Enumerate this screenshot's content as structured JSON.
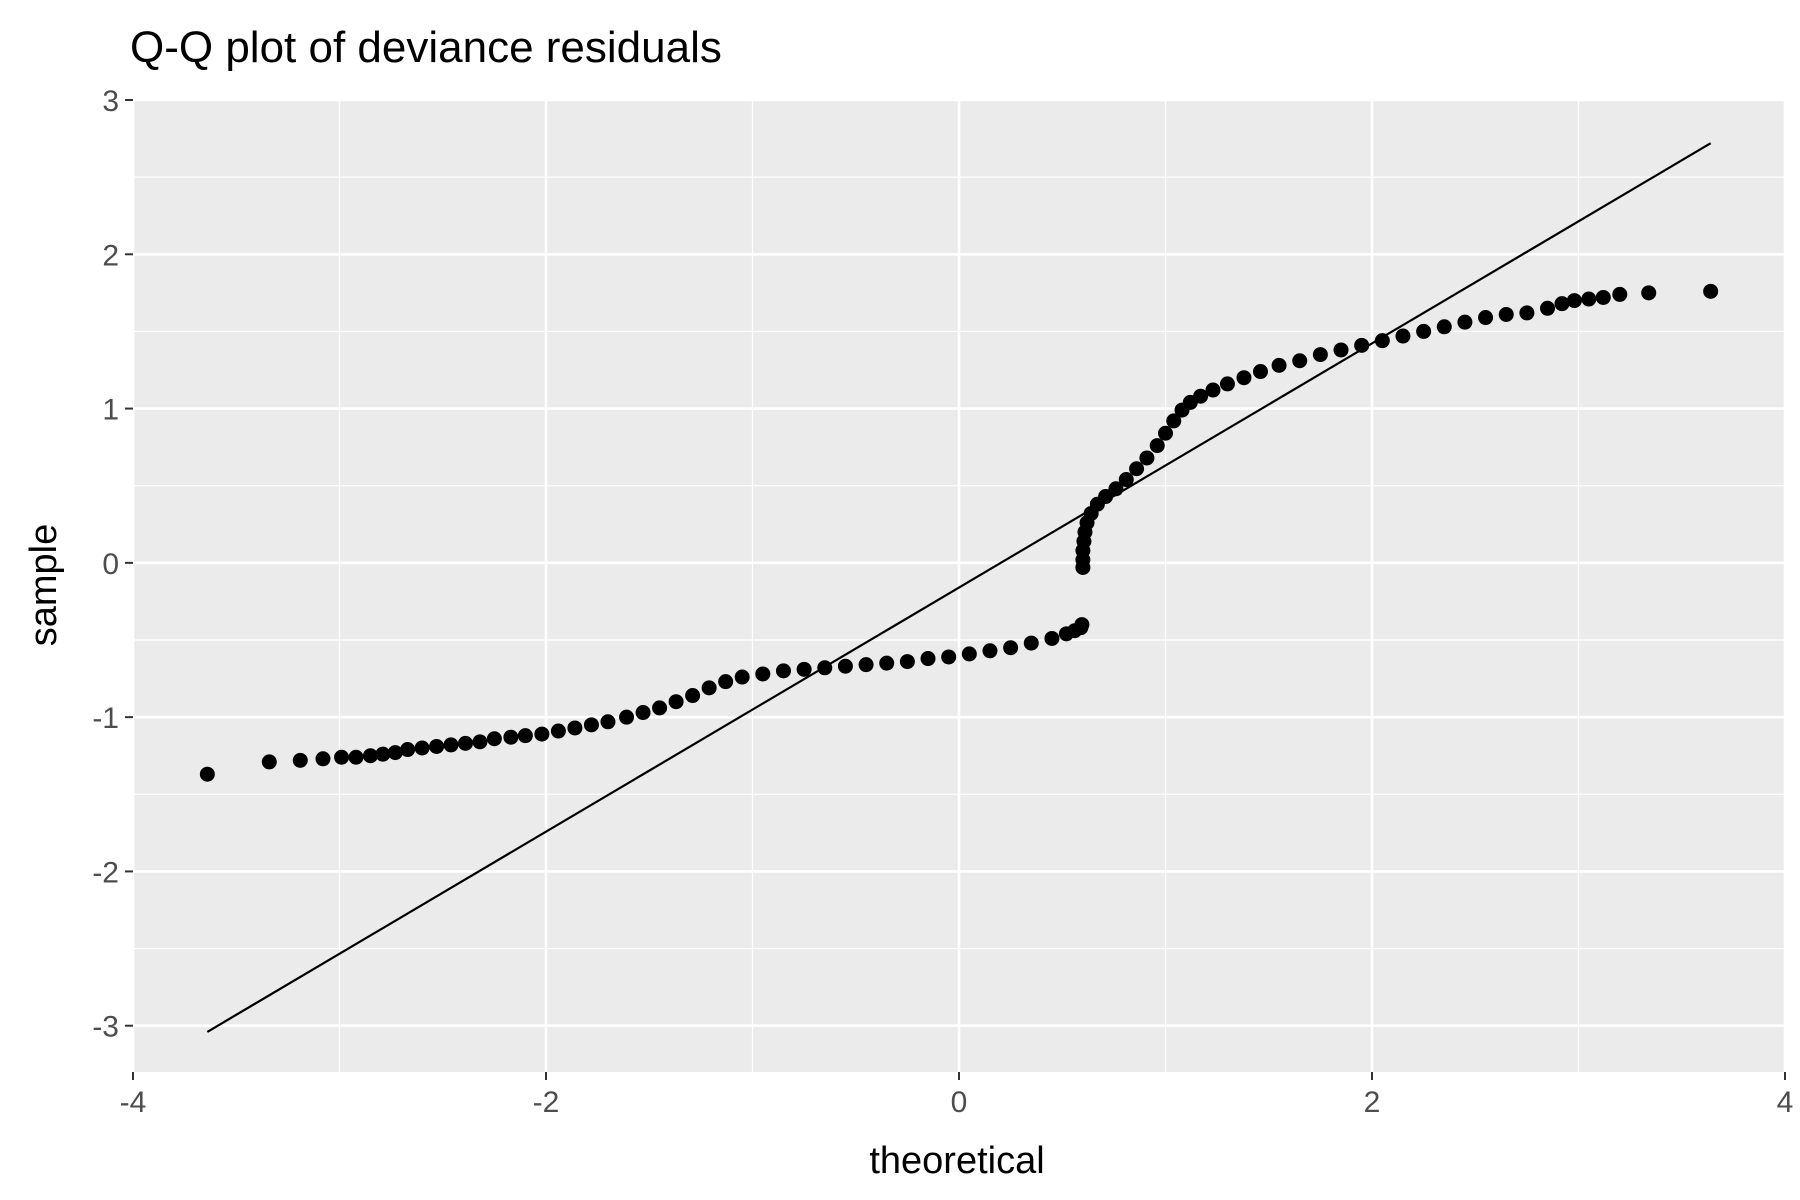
{
  "chart_data": {
    "type": "scatter",
    "title": "Q-Q plot of deviance residuals",
    "xlabel": "theoretical",
    "ylabel": "sample",
    "xlim": [
      -4,
      4
    ],
    "ylim": [
      -3.3,
      3
    ],
    "x_ticks": [
      -4,
      -2,
      0,
      2,
      4
    ],
    "y_ticks": [
      -3,
      -2,
      -1,
      0,
      1,
      2,
      3
    ],
    "x_tick_labels": [
      "-4",
      "-2",
      "0",
      "2",
      "4"
    ],
    "y_tick_labels": [
      "-3",
      "-2",
      "-1",
      "0",
      "1",
      "2",
      "3"
    ],
    "grid": true,
    "background": "#ebebeb",
    "grid_color": "#ffffff",
    "point_color": "#000000",
    "reference_line": {
      "x": [
        -3.64,
        3.64
      ],
      "y": [
        -3.04,
        2.72
      ]
    },
    "series": [
      {
        "points": [
          [
            -3.64,
            -1.37
          ],
          [
            -3.34,
            -1.29
          ],
          [
            -3.19,
            -1.28
          ],
          [
            -3.08,
            -1.27
          ],
          [
            -2.99,
            -1.26
          ],
          [
            -2.92,
            -1.26
          ],
          [
            -2.85,
            -1.25
          ],
          [
            -2.79,
            -1.24
          ],
          [
            -2.73,
            -1.23
          ],
          [
            -2.67,
            -1.21
          ],
          [
            -2.6,
            -1.2
          ],
          [
            -2.53,
            -1.19
          ],
          [
            -2.46,
            -1.18
          ],
          [
            -2.39,
            -1.17
          ],
          [
            -2.32,
            -1.16
          ],
          [
            -2.25,
            -1.14
          ],
          [
            -2.17,
            -1.13
          ],
          [
            -2.1,
            -1.12
          ],
          [
            -2.02,
            -1.11
          ],
          [
            -1.94,
            -1.09
          ],
          [
            -1.86,
            -1.07
          ],
          [
            -1.78,
            -1.05
          ],
          [
            -1.7,
            -1.03
          ],
          [
            -1.61,
            -1.0
          ],
          [
            -1.53,
            -0.97
          ],
          [
            -1.45,
            -0.94
          ],
          [
            -1.37,
            -0.9
          ],
          [
            -1.29,
            -0.86
          ],
          [
            -1.21,
            -0.81
          ],
          [
            -1.13,
            -0.77
          ],
          [
            -1.05,
            -0.74
          ],
          [
            -0.95,
            -0.72
          ],
          [
            -0.85,
            -0.7
          ],
          [
            -0.75,
            -0.69
          ],
          [
            -0.65,
            -0.68
          ],
          [
            -0.55,
            -0.67
          ],
          [
            -0.45,
            -0.66
          ],
          [
            -0.35,
            -0.65
          ],
          [
            -0.25,
            -0.64
          ],
          [
            -0.15,
            -0.62
          ],
          [
            -0.05,
            -0.61
          ],
          [
            0.05,
            -0.59
          ],
          [
            0.15,
            -0.57
          ],
          [
            0.25,
            -0.55
          ],
          [
            0.35,
            -0.52
          ],
          [
            0.45,
            -0.49
          ],
          [
            0.52,
            -0.46
          ],
          [
            0.56,
            -0.44
          ],
          [
            0.59,
            -0.42
          ],
          [
            0.595,
            -0.4
          ],
          [
            0.6,
            -0.03
          ],
          [
            0.6,
            0.02
          ],
          [
            0.6,
            0.08
          ],
          [
            0.605,
            0.14
          ],
          [
            0.61,
            0.2
          ],
          [
            0.62,
            0.26
          ],
          [
            0.64,
            0.32
          ],
          [
            0.67,
            0.38
          ],
          [
            0.71,
            0.43
          ],
          [
            0.76,
            0.48
          ],
          [
            0.81,
            0.54
          ],
          [
            0.86,
            0.61
          ],
          [
            0.91,
            0.68
          ],
          [
            0.96,
            0.76
          ],
          [
            1.0,
            0.84
          ],
          [
            1.04,
            0.92
          ],
          [
            1.08,
            0.99
          ],
          [
            1.12,
            1.04
          ],
          [
            1.17,
            1.08
          ],
          [
            1.23,
            1.12
          ],
          [
            1.3,
            1.16
          ],
          [
            1.38,
            1.2
          ],
          [
            1.46,
            1.24
          ],
          [
            1.55,
            1.28
          ],
          [
            1.65,
            1.31
          ],
          [
            1.75,
            1.35
          ],
          [
            1.85,
            1.38
          ],
          [
            1.95,
            1.41
          ],
          [
            2.05,
            1.44
          ],
          [
            2.15,
            1.47
          ],
          [
            2.25,
            1.5
          ],
          [
            2.35,
            1.53
          ],
          [
            2.45,
            1.56
          ],
          [
            2.55,
            1.59
          ],
          [
            2.65,
            1.61
          ],
          [
            2.75,
            1.62
          ],
          [
            2.85,
            1.65
          ],
          [
            2.92,
            1.68
          ],
          [
            2.98,
            1.7
          ],
          [
            3.05,
            1.71
          ],
          [
            3.12,
            1.72
          ],
          [
            3.2,
            1.74
          ],
          [
            3.34,
            1.75
          ],
          [
            3.64,
            1.76
          ]
        ]
      }
    ]
  }
}
